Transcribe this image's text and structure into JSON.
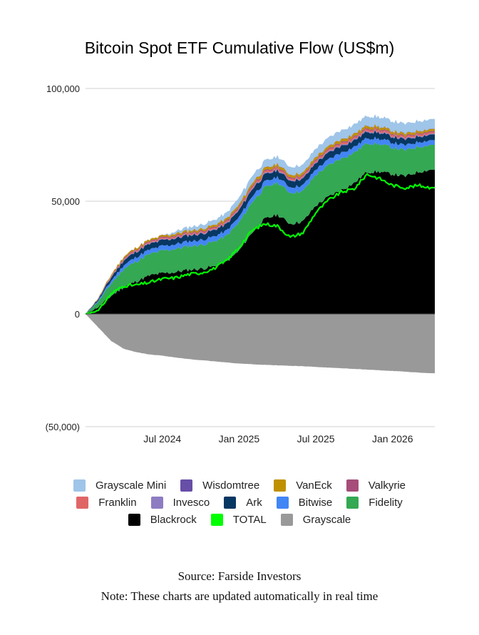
{
  "chart_data": {
    "type": "area",
    "stacked": true,
    "title": "Bitcoin Spot ETF Cumulative Flow (US$m)",
    "xlabel": "",
    "ylabel": "",
    "ylim": [
      -50000,
      100000
    ],
    "yticks": [
      {
        "value": 100000,
        "label": "100,000"
      },
      {
        "value": 50000,
        "label": "50,000"
      },
      {
        "value": 0,
        "label": "0"
      },
      {
        "value": -50000,
        "label": "(50,000)"
      }
    ],
    "xticks": [
      {
        "month_index": 6,
        "label": "Jul 2024"
      },
      {
        "month_index": 12,
        "label": "Jan 2025"
      },
      {
        "month_index": 18,
        "label": "Jul 2025"
      },
      {
        "month_index": 24,
        "label": "Jan 2026"
      }
    ],
    "x_months": [
      0,
      1,
      2,
      3,
      4,
      5,
      6,
      7,
      8,
      9,
      10,
      11,
      12,
      13,
      14,
      15,
      16,
      17,
      18,
      19,
      20,
      21,
      22,
      23,
      24,
      25,
      26,
      27
    ],
    "x_range": [
      0,
      27.3
    ],
    "grid": true,
    "legend_position": "bottom",
    "series": [
      {
        "name": "Blackrock",
        "color": "#000000",
        "values": [
          0,
          3000,
          8000,
          12000,
          14500,
          17000,
          18000,
          18500,
          19500,
          20000,
          21000,
          23000,
          28000,
          36000,
          42000,
          44000,
          40000,
          41000,
          48000,
          52000,
          55000,
          58000,
          63000,
          63000,
          62000,
          61000,
          63000,
          64000
        ]
      },
      {
        "name": "Fidelity",
        "color": "#34a853",
        "values": [
          0,
          2500,
          5500,
          8000,
          9000,
          9500,
          10000,
          10300,
          10500,
          10600,
          11000,
          11500,
          12500,
          13500,
          14000,
          14200,
          13800,
          13500,
          13700,
          13900,
          14100,
          13500,
          12800,
          12200,
          11800,
          11500,
          11200,
          11000
        ]
      },
      {
        "name": "Bitwise",
        "color": "#4285f4",
        "values": [
          0,
          500,
          1200,
          1700,
          1900,
          2000,
          2050,
          2100,
          2150,
          2200,
          2250,
          2300,
          2400,
          2500,
          2550,
          2500,
          2450,
          2450,
          2500,
          2550,
          2600,
          2500,
          2400,
          2300,
          2250,
          2200,
          2150,
          2100
        ]
      },
      {
        "name": "Ark",
        "color": "#073763",
        "values": [
          0,
          600,
          1500,
          2200,
          2400,
          2500,
          2550,
          2600,
          2650,
          2700,
          2800,
          2900,
          3100,
          3200,
          3100,
          3000,
          2900,
          2900,
          2900,
          2950,
          3000,
          2900,
          2800,
          2700,
          2600,
          2550,
          2500,
          2500
        ]
      },
      {
        "name": "Invesco",
        "color": "#8e7cc3",
        "values": [
          0,
          100,
          200,
          250,
          280,
          300,
          310,
          320,
          330,
          340,
          350,
          360,
          380,
          400,
          400,
          390,
          380,
          380,
          390,
          400,
          410,
          400,
          390,
          380,
          370,
          360,
          360,
          360
        ]
      },
      {
        "name": "Franklin",
        "color": "#e06666",
        "values": [
          0,
          150,
          300,
          400,
          450,
          480,
          500,
          520,
          540,
          560,
          580,
          600,
          650,
          700,
          720,
          700,
          690,
          690,
          700,
          720,
          740,
          730,
          720,
          700,
          690,
          680,
          670,
          670
        ]
      },
      {
        "name": "Valkyrie",
        "color": "#a64d79",
        "values": [
          0,
          100,
          250,
          350,
          400,
          420,
          430,
          440,
          450,
          460,
          470,
          480,
          500,
          520,
          530,
          520,
          510,
          510,
          520,
          530,
          540,
          530,
          520,
          510,
          500,
          490,
          490,
          490
        ]
      },
      {
        "name": "VanEck",
        "color": "#bf9000",
        "values": [
          0,
          200,
          500,
          650,
          700,
          720,
          740,
          760,
          780,
          800,
          850,
          900,
          1000,
          1100,
          1150,
          1100,
          1050,
          1050,
          1100,
          1150,
          1200,
          1150,
          1100,
          1050,
          1000,
          980,
          960,
          950
        ]
      },
      {
        "name": "Wisdomtree",
        "color": "#674ea7",
        "values": [
          0,
          10,
          20,
          30,
          35,
          40,
          45,
          50,
          55,
          60,
          65,
          70,
          80,
          90,
          95,
          95,
          95,
          95,
          100,
          105,
          110,
          110,
          110,
          110,
          110,
          110,
          110,
          110
        ]
      },
      {
        "name": "Grayscale Mini",
        "color": "#9fc5e8",
        "values": [
          0,
          0,
          0,
          0,
          0,
          0,
          0,
          1000,
          1500,
          1800,
          2100,
          2500,
          3000,
          3200,
          3300,
          3300,
          3400,
          3500,
          3600,
          3800,
          4000,
          4100,
          4200,
          4200,
          4300,
          4300,
          4300,
          4300
        ]
      },
      {
        "name": "Grayscale",
        "color": "#999999",
        "values": [
          0,
          -6000,
          -12000,
          -15500,
          -17000,
          -18000,
          -18500,
          -19300,
          -20000,
          -20500,
          -21000,
          -21500,
          -22000,
          -22300,
          -22600,
          -22800,
          -23000,
          -23200,
          -23500,
          -23800,
          -24100,
          -24400,
          -24700,
          -25000,
          -25300,
          -25600,
          -26000,
          -26300
        ]
      }
    ],
    "line_series": {
      "name": "TOTAL",
      "color": "#00ff00",
      "values": [
        0,
        1500,
        9000,
        12500,
        12800,
        14000,
        15500,
        16000,
        17500,
        18200,
        20000,
        23500,
        29500,
        37000,
        40000,
        39000,
        34000,
        36000,
        45000,
        50500,
        54000,
        55500,
        62000,
        60000,
        57000,
        56000,
        57000,
        56000
      ]
    }
  },
  "legend": {
    "rows": [
      [
        {
          "label": "Grayscale Mini",
          "color": "#9fc5e8"
        },
        {
          "label": "Wisdomtree",
          "color": "#674ea7"
        },
        {
          "label": "VanEck",
          "color": "#bf9000"
        },
        {
          "label": "Valkyrie",
          "color": "#a64d79"
        }
      ],
      [
        {
          "label": "Franklin",
          "color": "#e06666"
        },
        {
          "label": "Invesco",
          "color": "#8e7cc3"
        },
        {
          "label": "Ark",
          "color": "#073763"
        },
        {
          "label": "Bitwise",
          "color": "#4285f4"
        },
        {
          "label": "Fidelity",
          "color": "#34a853"
        }
      ],
      [
        {
          "label": "Blackrock",
          "color": "#000000"
        },
        {
          "label": "TOTAL",
          "color": "#00ff00"
        },
        {
          "label": "Grayscale",
          "color": "#999999"
        }
      ]
    ]
  },
  "footer": {
    "source": "Source: Farside Investors",
    "note": "Note: These charts are updated automatically in real time"
  }
}
